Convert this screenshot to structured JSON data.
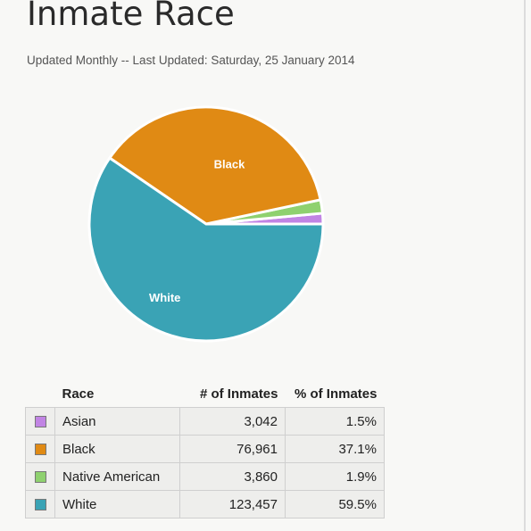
{
  "page": {
    "title": "Inmate Race",
    "subtitle": "Updated Monthly -- Last Updated: Saturday, 25 January 2014"
  },
  "chart_data": {
    "type": "pie",
    "start_angle_deg": 0,
    "direction": "counterclockwise",
    "categories": [
      "Asian",
      "Native American",
      "Black",
      "White"
    ],
    "values": [
      3042,
      3860,
      76961,
      123457
    ],
    "percents": [
      1.5,
      1.9,
      37.1,
      59.5
    ],
    "colors": [
      "#c184e4",
      "#8fd16f",
      "#e08a14",
      "#3aa3b5"
    ],
    "slice_labels": [
      "",
      "",
      "Black",
      "White"
    ]
  },
  "table": {
    "headers": {
      "race": "Race",
      "count": "# of Inmates",
      "percent": "% of Inmates"
    },
    "rows": [
      {
        "race": "Asian",
        "count": "3,042",
        "percent": "1.5%",
        "color": "#c184e4"
      },
      {
        "race": "Black",
        "count": "76,961",
        "percent": "37.1%",
        "color": "#e08a14"
      },
      {
        "race": "Native American",
        "count": "3,860",
        "percent": "1.9%",
        "color": "#8fd16f"
      },
      {
        "race": "White",
        "count": "123,457",
        "percent": "59.5%",
        "color": "#3aa3b5"
      }
    ]
  }
}
